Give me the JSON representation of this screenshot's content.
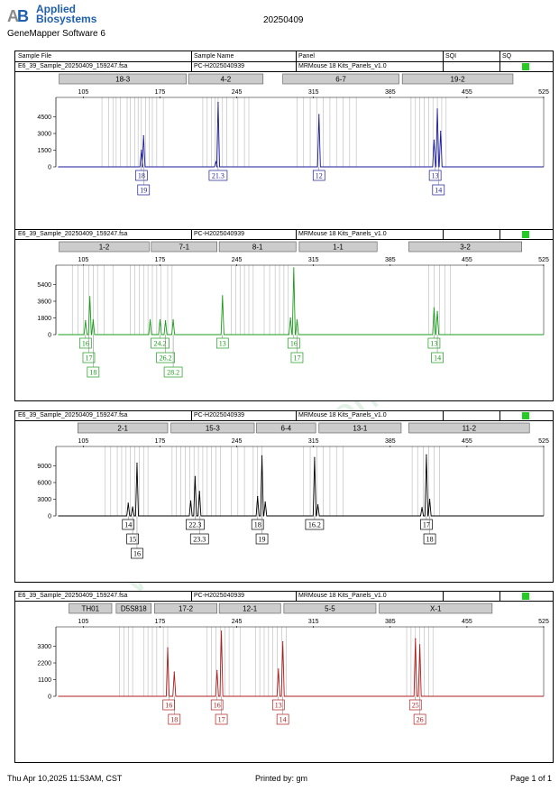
{
  "header": {
    "company": "Applied Biosystems",
    "company_line1": "Applied",
    "company_line2": "Biosystems",
    "app_name": "GeneMapper Software 6",
    "run_date": "20250409"
  },
  "columns": {
    "sample_file": "Sample File",
    "sample_name": "Sample Name",
    "panel": "Panel",
    "sqi": "SQI",
    "sq": "SQ"
  },
  "colors": {
    "blue": "#1a1a99",
    "green": "#1a9c1a",
    "black": "#000000",
    "red": "#b01c1c",
    "marker_box": "#cccccc",
    "sq_ok": "#22cc22",
    "watermark": "#e2f2e6"
  },
  "watermark": "www.procell.com.cn",
  "footer": {
    "date": "Thu Apr 10,2025 11:53AM, CST",
    "printed_by": "Printed by: gm",
    "page": "Page 1 of 1"
  },
  "chart_data": [
    {
      "type": "line",
      "dye": "blue",
      "sample_file": "E6_39_Sample_20250409_159247.fsa",
      "sample_name": "PC-H2025040939",
      "panel": "MRMouse 18 Kits_Panels_v1.0",
      "x_ticks": [
        105,
        175,
        245,
        315,
        385,
        455,
        525
      ],
      "y_ticks": [
        0,
        1500,
        3000,
        4500
      ],
      "ylim": [
        0,
        6000
      ],
      "xlim": [
        80,
        525
      ],
      "markers": [
        {
          "name": "18-3",
          "start": 83,
          "end": 199
        },
        {
          "name": "4-2",
          "start": 201,
          "end": 269
        },
        {
          "name": "6-7",
          "start": 287,
          "end": 393
        },
        {
          "name": "19-2",
          "start": 396,
          "end": 497
        }
      ],
      "bins": [
        122,
        128,
        132,
        135,
        139,
        145,
        148,
        152,
        155,
        158,
        162,
        165,
        168,
        172,
        178,
        214,
        218,
        222,
        225,
        228,
        232,
        236,
        242,
        246,
        252,
        256,
        300,
        306,
        312,
        318,
        324,
        330,
        336,
        342,
        348,
        354,
        404,
        408,
        412,
        416,
        420,
        424,
        428,
        432,
        436
      ],
      "peaks": [
        {
          "x": 158,
          "height": 1500
        },
        {
          "x": 160,
          "height": 2800
        },
        {
          "x": 226,
          "height": 450
        },
        {
          "x": 228,
          "height": 5800
        },
        {
          "x": 320,
          "height": 4700
        },
        {
          "x": 425,
          "height": 2400
        },
        {
          "x": 428,
          "height": 5200
        },
        {
          "x": 431,
          "height": 3200
        }
      ],
      "alleles": [
        {
          "label": "18",
          "x": 158,
          "row": 0
        },
        {
          "label": "19",
          "x": 160,
          "row": 1
        },
        {
          "label": "21.3",
          "x": 228,
          "row": 0
        },
        {
          "label": "12",
          "x": 320,
          "row": 0
        },
        {
          "label": "13",
          "x": 426,
          "row": 0
        },
        {
          "label": "14",
          "x": 429,
          "row": 1
        }
      ]
    },
    {
      "type": "line",
      "dye": "green",
      "sample_file": "E6_39_Sample_20250409_159247.fsa",
      "sample_name": "PC-H2025040939",
      "panel": "MRMouse 18 Kits_Panels_v1.0",
      "x_ticks": [
        105,
        175,
        245,
        315,
        385,
        455,
        525
      ],
      "y_ticks": [
        0,
        1800,
        3600,
        5400
      ],
      "ylim": [
        0,
        7200
      ],
      "xlim": [
        80,
        525
      ],
      "markers": [
        {
          "name": "1-2",
          "start": 83,
          "end": 165
        },
        {
          "name": "7-1",
          "start": 167,
          "end": 227
        },
        {
          "name": "8-1",
          "start": 229,
          "end": 299
        },
        {
          "name": "1-1",
          "start": 302,
          "end": 373
        },
        {
          "name": "3-2",
          "start": 402,
          "end": 505
        }
      ],
      "bins": [
        95,
        100,
        105,
        110,
        114,
        118,
        124,
        132,
        148,
        152,
        156,
        160,
        164,
        168,
        172,
        176,
        182,
        186,
        240,
        244,
        248,
        252,
        256,
        260,
        270,
        275,
        280,
        284,
        288,
        292,
        420,
        425,
        430,
        435,
        440
      ],
      "peaks": [
        {
          "x": 107,
          "height": 1500
        },
        {
          "x": 111,
          "height": 4100
        },
        {
          "x": 114,
          "height": 1600
        },
        {
          "x": 166,
          "height": 1600
        },
        {
          "x": 175,
          "height": 1600
        },
        {
          "x": 180,
          "height": 1500
        },
        {
          "x": 187,
          "height": 1600
        },
        {
          "x": 232,
          "height": 4200
        },
        {
          "x": 294,
          "height": 1800
        },
        {
          "x": 297,
          "height": 7200
        },
        {
          "x": 300,
          "height": 1600
        },
        {
          "x": 425,
          "height": 2900
        },
        {
          "x": 428,
          "height": 2500
        }
      ],
      "alleles": [
        {
          "label": "16",
          "x": 107,
          "row": 0
        },
        {
          "label": "17",
          "x": 110,
          "row": 1
        },
        {
          "label": "18",
          "x": 114,
          "row": 2
        },
        {
          "label": "24.2",
          "x": 175,
          "row": 0
        },
        {
          "label": "26.2",
          "x": 180,
          "row": 1
        },
        {
          "label": "28.2",
          "x": 187,
          "row": 2
        },
        {
          "label": "13",
          "x": 232,
          "row": 0
        },
        {
          "label": "16",
          "x": 297,
          "row": 0
        },
        {
          "label": "17",
          "x": 300,
          "row": 1
        },
        {
          "label": "13",
          "x": 425,
          "row": 0
        },
        {
          "label": "14",
          "x": 428,
          "row": 1
        }
      ]
    },
    {
      "type": "line",
      "dye": "black",
      "sample_file": "E6_39_Sample_20250409_159247.fsa",
      "sample_name": "PC-H2025040939",
      "panel": "MRMouse 18 Kits_Panels_v1.0",
      "x_ticks": [
        105,
        175,
        245,
        315,
        385,
        455,
        525
      ],
      "y_ticks": [
        0,
        3000,
        6000,
        9000
      ],
      "ylim": [
        0,
        12000
      ],
      "xlim": [
        80,
        525
      ],
      "markers": [
        {
          "name": "2-1",
          "start": 100,
          "end": 182
        },
        {
          "name": "15-3",
          "start": 185,
          "end": 261
        },
        {
          "name": "6-4",
          "start": 263,
          "end": 317
        },
        {
          "name": "13-1",
          "start": 320,
          "end": 395
        },
        {
          "name": "11-2",
          "start": 402,
          "end": 512
        }
      ],
      "bins": [
        125,
        130,
        136,
        140,
        144,
        148,
        152,
        156,
        160,
        164,
        186,
        190,
        194,
        198,
        202,
        206,
        210,
        214,
        218,
        222,
        226,
        230,
        240,
        246,
        252,
        260,
        264,
        268,
        306,
        312,
        318,
        324,
        330,
        336,
        342,
        405,
        410,
        415,
        420,
        425,
        430
      ],
      "peaks": [
        {
          "x": 146,
          "height": 2300
        },
        {
          "x": 150,
          "height": 1600
        },
        {
          "x": 154,
          "height": 9500
        },
        {
          "x": 203,
          "height": 2700
        },
        {
          "x": 207,
          "height": 7100
        },
        {
          "x": 211,
          "height": 4400
        },
        {
          "x": 264,
          "height": 3500
        },
        {
          "x": 268,
          "height": 10800
        },
        {
          "x": 271,
          "height": 2500
        },
        {
          "x": 316,
          "height": 10500
        },
        {
          "x": 319,
          "height": 2000
        },
        {
          "x": 414,
          "height": 1500
        },
        {
          "x": 418,
          "height": 11000
        },
        {
          "x": 421,
          "height": 3000
        }
      ],
      "alleles": [
        {
          "label": "14",
          "x": 146,
          "row": 0
        },
        {
          "label": "15",
          "x": 150,
          "row": 1
        },
        {
          "label": "16",
          "x": 154,
          "row": 2
        },
        {
          "label": "22.3",
          "x": 207,
          "row": 0
        },
        {
          "label": "23.3",
          "x": 211,
          "row": 1
        },
        {
          "label": "18",
          "x": 264,
          "row": 0
        },
        {
          "label": "19",
          "x": 268,
          "row": 1
        },
        {
          "label": "16.2",
          "x": 316,
          "row": 0
        },
        {
          "label": "17",
          "x": 418,
          "row": 0
        },
        {
          "label": "18",
          "x": 421,
          "row": 1
        }
      ]
    },
    {
      "type": "line",
      "dye": "red",
      "sample_file": "E6_39_Sample_20250409_159247.fsa",
      "sample_name": "PC-H2025040939",
      "panel": "MRMouse 18 Kits_Panels_v1.0",
      "x_ticks": [
        105,
        175,
        245,
        315,
        385,
        455,
        525
      ],
      "y_ticks": [
        0,
        1100,
        2200,
        3300
      ],
      "ylim": [
        0,
        4400
      ],
      "xlim": [
        80,
        525
      ],
      "markers": [
        {
          "name": "TH01",
          "start": 92,
          "end": 131
        },
        {
          "name": "D5S818",
          "start": 135,
          "end": 167
        },
        {
          "name": "17-2",
          "start": 170,
          "end": 227
        },
        {
          "name": "12-1",
          "start": 229,
          "end": 285
        },
        {
          "name": "5-5",
          "start": 288,
          "end": 372
        },
        {
          "name": "X-1",
          "start": 375,
          "end": 478
        }
      ],
      "bins": [
        138,
        142,
        146,
        150,
        160,
        164,
        168,
        172,
        178,
        182,
        218,
        222,
        226,
        230,
        234,
        238,
        242,
        248,
        262,
        266,
        270,
        274,
        278,
        282,
        286,
        290,
        400,
        404,
        408,
        412,
        416,
        420,
        424
      ],
      "peaks": [
        {
          "x": 182,
          "height": 3200
        },
        {
          "x": 188,
          "height": 1600
        },
        {
          "x": 227,
          "height": 1700
        },
        {
          "x": 231,
          "height": 4300
        },
        {
          "x": 283,
          "height": 1800
        },
        {
          "x": 287,
          "height": 3600
        },
        {
          "x": 408,
          "height": 3800
        },
        {
          "x": 412,
          "height": 3400
        }
      ],
      "alleles": [
        {
          "label": "16",
          "x": 183,
          "row": 0
        },
        {
          "label": "18",
          "x": 188,
          "row": 1
        },
        {
          "label": "16",
          "x": 227,
          "row": 0
        },
        {
          "label": "17",
          "x": 231,
          "row": 1
        },
        {
          "label": "13",
          "x": 283,
          "row": 0
        },
        {
          "label": "14",
          "x": 287,
          "row": 1
        },
        {
          "label": "25",
          "x": 408,
          "row": 0
        },
        {
          "label": "26",
          "x": 412,
          "row": 1
        }
      ]
    }
  ]
}
